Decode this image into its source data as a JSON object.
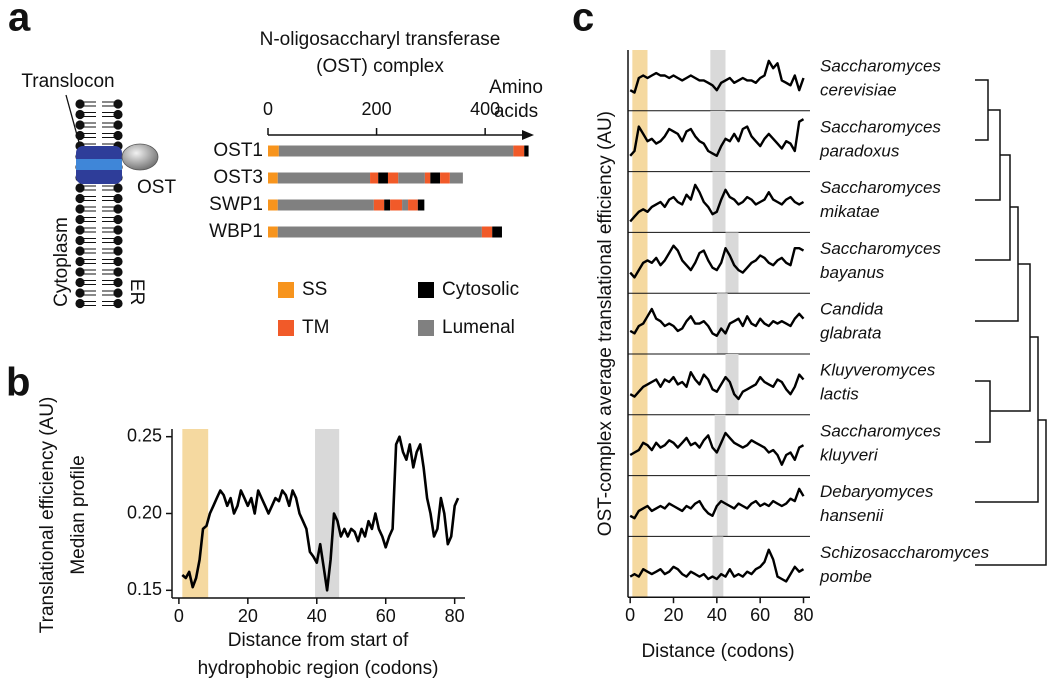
{
  "panel_labels": [
    "a",
    "b",
    "c"
  ],
  "diagram": {
    "translocon": "Translocon",
    "ost": "OST",
    "cytoplasm": "Cytoplasm",
    "er": "ER"
  },
  "chart_data": [
    {
      "type": "domain",
      "title": [
        "N-oligosaccharyl transferase",
        "(OST) complex"
      ],
      "xlabel": [
        "Amino",
        "acids"
      ],
      "xlim": [
        0,
        490
      ],
      "xticks": [
        0,
        200,
        400
      ],
      "legend": [
        {
          "name": "SS",
          "color": "#f7941d"
        },
        {
          "name": "TM",
          "color": "#f15a29"
        },
        {
          "name": "Cytosolic",
          "color": "#000000"
        },
        {
          "name": "Lumenal",
          "color": "#808080"
        }
      ],
      "proteins": [
        {
          "name": "OST1",
          "segments": [
            {
              "kind": 0,
              "start": 0,
              "end": 20
            },
            {
              "kind": 3,
              "start": 20,
              "end": 452
            },
            {
              "kind": 1,
              "start": 452,
              "end": 472
            },
            {
              "kind": 2,
              "start": 472,
              "end": 480
            }
          ]
        },
        {
          "name": "OST3",
          "segments": [
            {
              "kind": 0,
              "start": 0,
              "end": 18
            },
            {
              "kind": 3,
              "start": 18,
              "end": 188
            },
            {
              "kind": 1,
              "start": 188,
              "end": 203
            },
            {
              "kind": 2,
              "start": 203,
              "end": 221
            },
            {
              "kind": 1,
              "start": 221,
              "end": 240
            },
            {
              "kind": 3,
              "start": 240,
              "end": 289
            },
            {
              "kind": 1,
              "start": 289,
              "end": 299
            },
            {
              "kind": 2,
              "start": 299,
              "end": 317
            },
            {
              "kind": 1,
              "start": 317,
              "end": 335
            },
            {
              "kind": 3,
              "start": 335,
              "end": 359
            }
          ]
        },
        {
          "name": "SWP1",
          "segments": [
            {
              "kind": 0,
              "start": 0,
              "end": 18
            },
            {
              "kind": 3,
              "start": 18,
              "end": 195
            },
            {
              "kind": 1,
              "start": 195,
              "end": 214
            },
            {
              "kind": 2,
              "start": 214,
              "end": 225
            },
            {
              "kind": 1,
              "start": 225,
              "end": 247
            },
            {
              "kind": 3,
              "start": 247,
              "end": 258
            },
            {
              "kind": 1,
              "start": 258,
              "end": 276
            },
            {
              "kind": 2,
              "start": 276,
              "end": 288
            }
          ]
        },
        {
          "name": "WBP1",
          "segments": [
            {
              "kind": 0,
              "start": 0,
              "end": 18
            },
            {
              "kind": 3,
              "start": 18,
              "end": 394
            },
            {
              "kind": 1,
              "start": 394,
              "end": 413
            },
            {
              "kind": 2,
              "start": 413,
              "end": 431
            }
          ]
        }
      ]
    },
    {
      "type": "line",
      "ylabel": [
        "Translational efficiency (AU)",
        "Median profile"
      ],
      "xlabel": [
        "Distance from start of",
        "hydrophobic region (codons)"
      ],
      "xlim": [
        -2,
        83
      ],
      "ylim": [
        0.145,
        0.255
      ],
      "xticks": [
        0,
        20,
        40,
        60,
        80
      ],
      "yticks": [
        0.15,
        {
          "value": 0.2,
          "label": "0.20"
        },
        0.25
      ],
      "shades": [
        {
          "start": 1,
          "end": 8.5,
          "color": "#f5d9a0"
        },
        {
          "start": 39.5,
          "end": 46.5,
          "color": "#d9d9d9"
        }
      ],
      "color": "#000000",
      "x": [
        1,
        2,
        3,
        4,
        5,
        6,
        7,
        8,
        9,
        10,
        11,
        12,
        13,
        14,
        15,
        16,
        17,
        18,
        19,
        20,
        21,
        22,
        23,
        24,
        25,
        26,
        27,
        28,
        29,
        30,
        31,
        32,
        33,
        34,
        35,
        36,
        37,
        38,
        39,
        40,
        41,
        42,
        43,
        44,
        45,
        46,
        47,
        48,
        49,
        50,
        51,
        52,
        53,
        54,
        55,
        56,
        57,
        58,
        59,
        60,
        61,
        62,
        63,
        64,
        65,
        66,
        67,
        68,
        69,
        70,
        71,
        72,
        73,
        74,
        75,
        76,
        77,
        78,
        79,
        80,
        81
      ],
      "values": [
        0.16,
        0.158,
        0.162,
        0.152,
        0.158,
        0.17,
        0.19,
        0.192,
        0.2,
        0.205,
        0.21,
        0.215,
        0.212,
        0.205,
        0.21,
        0.2,
        0.205,
        0.215,
        0.21,
        0.205,
        0.21,
        0.2,
        0.215,
        0.21,
        0.205,
        0.2,
        0.205,
        0.21,
        0.208,
        0.215,
        0.212,
        0.205,
        0.215,
        0.21,
        0.2,
        0.195,
        0.19,
        0.175,
        0.172,
        0.168,
        0.18,
        0.165,
        0.15,
        0.17,
        0.2,
        0.195,
        0.185,
        0.19,
        0.185,
        0.19,
        0.188,
        0.182,
        0.19,
        0.185,
        0.195,
        0.19,
        0.2,
        0.19,
        0.185,
        0.178,
        0.185,
        0.19,
        0.245,
        0.25,
        0.24,
        0.235,
        0.245,
        0.23,
        0.24,
        0.245,
        0.23,
        0.21,
        0.2,
        0.185,
        0.19,
        0.21,
        0.2,
        0.18,
        0.185,
        0.205,
        0.21
      ]
    },
    {
      "type": "multiples",
      "ylabel": "OST-complex average translational efficiency (AU)",
      "xlabel": "Distance (codons)",
      "xlim": [
        -1,
        83
      ],
      "ylim": [
        0,
        1
      ],
      "xticks": [
        0,
        20,
        40,
        60,
        80
      ],
      "shade": {
        "start": 1,
        "end": 8,
        "color": "#f5d9a0"
      },
      "shade_color": "#d9d9d9",
      "x": [
        0,
        2,
        4,
        6,
        8,
        10,
        12,
        14,
        16,
        18,
        20,
        22,
        24,
        26,
        28,
        30,
        32,
        34,
        36,
        38,
        40,
        42,
        44,
        46,
        48,
        50,
        52,
        54,
        56,
        58,
        60,
        62,
        64,
        66,
        68,
        70,
        72,
        74,
        76,
        78,
        80
      ],
      "series": [
        {
          "name": [
            "Saccharomyces",
            "cerevisiae"
          ],
          "color": "#000000",
          "shade": [
            37,
            44
          ],
          "values": [
            0.3,
            0.25,
            0.55,
            0.6,
            0.55,
            0.6,
            0.65,
            0.6,
            0.6,
            0.55,
            0.6,
            0.55,
            0.5,
            0.55,
            0.6,
            0.55,
            0.5,
            0.5,
            0.45,
            0.4,
            0.3,
            0.45,
            0.5,
            0.55,
            0.45,
            0.5,
            0.55,
            0.5,
            0.5,
            0.45,
            0.55,
            0.6,
            0.9,
            0.75,
            0.85,
            0.5,
            0.45,
            0.4,
            0.6,
            0.3,
            0.55
          ]
        },
        {
          "name": [
            "Saccharomyces",
            "paradoxus"
          ],
          "color": "#000000",
          "shade": [
            37,
            44
          ],
          "values": [
            0.2,
            0.3,
            0.8,
            0.65,
            0.5,
            0.55,
            0.45,
            0.5,
            0.6,
            0.75,
            0.7,
            0.65,
            0.5,
            0.7,
            0.75,
            0.6,
            0.5,
            0.45,
            0.3,
            0.25,
            0.2,
            0.4,
            0.55,
            0.5,
            0.65,
            0.5,
            0.75,
            0.8,
            0.6,
            0.5,
            0.4,
            0.55,
            0.65,
            0.55,
            0.45,
            0.35,
            0.5,
            0.45,
            0.3,
            0.9,
            0.95
          ]
        },
        {
          "name": [
            "Saccharomyces",
            "mikatae"
          ],
          "color": "#000000",
          "shade": [
            38,
            44
          ],
          "values": [
            0.1,
            0.2,
            0.3,
            0.35,
            0.3,
            0.4,
            0.45,
            0.5,
            0.4,
            0.55,
            0.6,
            0.5,
            0.45,
            0.65,
            0.55,
            0.85,
            0.7,
            0.5,
            0.4,
            0.25,
            0.3,
            0.55,
            0.75,
            0.6,
            0.55,
            0.45,
            0.5,
            0.6,
            0.55,
            0.45,
            0.5,
            0.55,
            0.7,
            0.55,
            0.5,
            0.45,
            0.55,
            0.6,
            0.5,
            0.45,
            0.5
          ]
        },
        {
          "name": [
            "Saccharomyces",
            "bayanus"
          ],
          "color": "#000000",
          "shade": [
            44,
            50
          ],
          "values": [
            0.3,
            0.2,
            0.35,
            0.5,
            0.55,
            0.5,
            0.6,
            0.45,
            0.55,
            0.7,
            0.85,
            0.75,
            0.55,
            0.45,
            0.35,
            0.5,
            0.7,
            0.75,
            0.55,
            0.4,
            0.35,
            0.5,
            0.8,
            0.65,
            0.45,
            0.35,
            0.3,
            0.4,
            0.5,
            0.55,
            0.65,
            0.6,
            0.5,
            0.45,
            0.55,
            0.6,
            0.5,
            0.45,
            0.8,
            0.8,
            0.75
          ]
        },
        {
          "name": [
            "Candida",
            "glabrata"
          ],
          "color": "#000000",
          "shade": [
            40,
            45
          ],
          "values": [
            0.35,
            0.3,
            0.45,
            0.5,
            0.65,
            0.8,
            0.6,
            0.55,
            0.45,
            0.5,
            0.45,
            0.35,
            0.4,
            0.55,
            0.65,
            0.5,
            0.5,
            0.55,
            0.45,
            0.3,
            0.25,
            0.4,
            0.3,
            0.5,
            0.55,
            0.6,
            0.45,
            0.65,
            0.5,
            0.45,
            0.6,
            0.5,
            0.45,
            0.55,
            0.5,
            0.55,
            0.5,
            0.45,
            0.6,
            0.7,
            0.6
          ]
        },
        {
          "name": [
            "Kluyveromyces",
            "lactis"
          ],
          "color": "#000000",
          "shade": [
            44,
            50
          ],
          "values": [
            0.3,
            0.25,
            0.35,
            0.45,
            0.5,
            0.55,
            0.6,
            0.45,
            0.6,
            0.55,
            0.65,
            0.5,
            0.55,
            0.45,
            0.75,
            0.6,
            0.5,
            0.7,
            0.6,
            0.4,
            0.35,
            0.5,
            0.65,
            0.55,
            0.3,
            0.2,
            0.35,
            0.4,
            0.45,
            0.5,
            0.65,
            0.55,
            0.5,
            0.45,
            0.6,
            0.55,
            0.4,
            0.3,
            0.45,
            0.7,
            0.6
          ]
        },
        {
          "name": [
            "Saccharomyces",
            "kluyveri"
          ],
          "color": "#000000",
          "shade": [
            39,
            44
          ],
          "values": [
            0.3,
            0.35,
            0.4,
            0.55,
            0.5,
            0.4,
            0.55,
            0.45,
            0.5,
            0.6,
            0.55,
            0.45,
            0.55,
            0.65,
            0.5,
            0.55,
            0.45,
            0.6,
            0.7,
            0.45,
            0.35,
            0.55,
            0.75,
            0.65,
            0.55,
            0.5,
            0.45,
            0.5,
            0.6,
            0.55,
            0.5,
            0.45,
            0.35,
            0.4,
            0.3,
            0.1,
            0.3,
            0.35,
            0.2,
            0.45,
            0.5
          ]
        },
        {
          "name": [
            "Debaryomyces",
            "hansenii"
          ],
          "color": "#000000",
          "shade": [
            40,
            45
          ],
          "values": [
            0.3,
            0.25,
            0.4,
            0.45,
            0.5,
            0.4,
            0.45,
            0.5,
            0.45,
            0.55,
            0.5,
            0.45,
            0.4,
            0.5,
            0.45,
            0.55,
            0.6,
            0.45,
            0.35,
            0.3,
            0.5,
            0.6,
            0.55,
            0.5,
            0.45,
            0.55,
            0.5,
            0.45,
            0.55,
            0.6,
            0.5,
            0.55,
            0.5,
            0.6,
            0.55,
            0.5,
            0.55,
            0.65,
            0.6,
            0.85,
            0.7
          ]
        },
        {
          "name": [
            "Schizosaccharomyces",
            "pombe"
          ],
          "color": "#000000",
          "shade": [
            38,
            43
          ],
          "values": [
            0.3,
            0.35,
            0.3,
            0.45,
            0.4,
            0.35,
            0.4,
            0.45,
            0.35,
            0.4,
            0.5,
            0.45,
            0.35,
            0.3,
            0.4,
            0.35,
            0.3,
            0.35,
            0.25,
            0.3,
            0.25,
            0.35,
            0.3,
            0.45,
            0.3,
            0.35,
            0.3,
            0.4,
            0.35,
            0.45,
            0.5,
            0.6,
            0.85,
            0.65,
            0.3,
            0.25,
            0.2,
            0.35,
            0.5,
            0.4,
            0.45
          ]
        }
      ]
    }
  ]
}
